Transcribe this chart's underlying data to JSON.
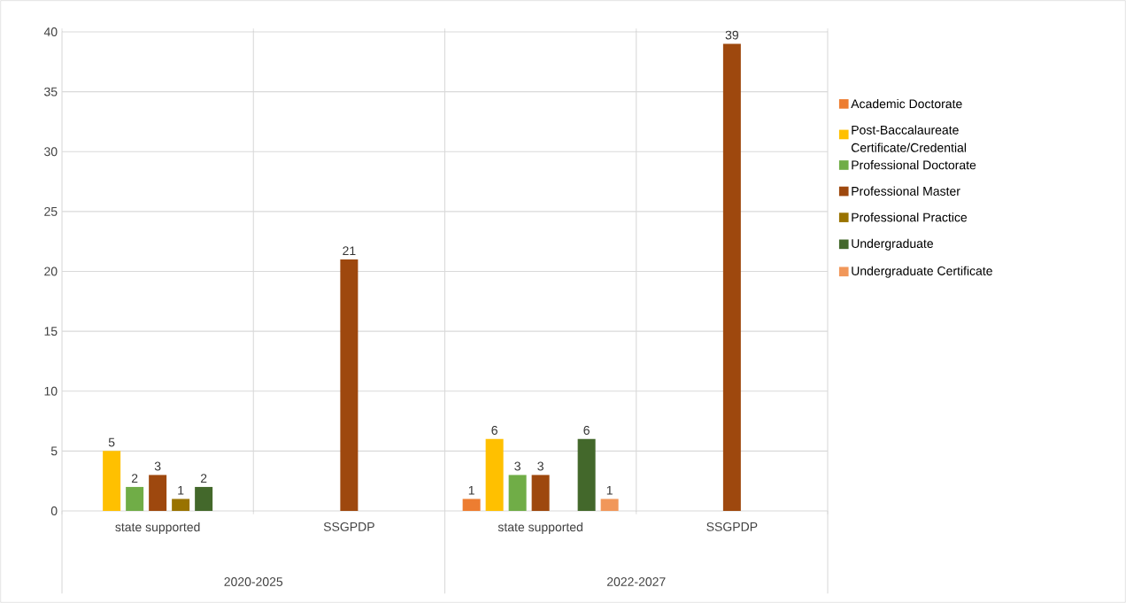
{
  "chart_data": {
    "type": "bar",
    "categories": [
      "state supported",
      "SSGPDP",
      "state supported",
      "SSGPDP"
    ],
    "annotations": [
      "2020-2025",
      "2022-2027"
    ],
    "series": [
      {
        "name": "Academic Doctorate",
        "color": "#ed7d31",
        "values": [
          null,
          null,
          1,
          null
        ]
      },
      {
        "name": "Post-Baccalaureate Certificate/Credential",
        "color": "#ffc000",
        "values": [
          5,
          null,
          6,
          null
        ]
      },
      {
        "name": "Professional Doctorate",
        "color": "#70ad47",
        "values": [
          2,
          null,
          3,
          null
        ]
      },
      {
        "name": "Professional Master",
        "color": "#9e480e",
        "values": [
          3,
          21,
          3,
          39
        ]
      },
      {
        "name": "Professional Practice",
        "color": "#997300",
        "values": [
          1,
          null,
          null,
          null
        ]
      },
      {
        "name": "Undergraduate",
        "color": "#43682b",
        "values": [
          2,
          null,
          6,
          null
        ]
      },
      {
        "name": "Undergraduate Certificate",
        "color": "#f1975a",
        "values": [
          null,
          null,
          1,
          null
        ]
      }
    ],
    "ylim": [
      0,
      40
    ],
    "yticks": [
      0,
      5,
      10,
      15,
      20,
      25,
      30,
      35,
      40
    ],
    "grid": true,
    "legend": "right",
    "data_labels": true
  }
}
